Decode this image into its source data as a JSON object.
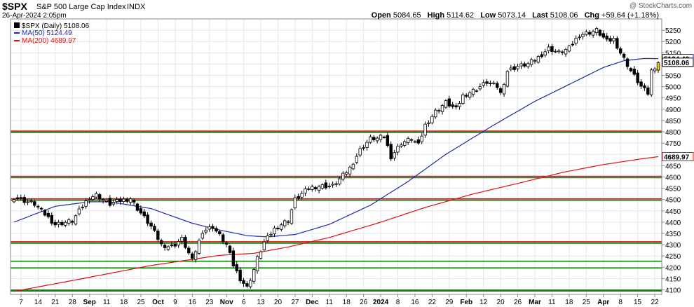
{
  "header": {
    "symbol": "$SPX",
    "name": "S&P 500 Large Cap Index",
    "exchange": "INDX",
    "date": "26-Apr-2024 2:05pm",
    "brand": "@ StockCharts.com",
    "open_label": "Open",
    "open": "5084.65",
    "high_label": "High",
    "high": "5114.62",
    "low_label": "Low",
    "low": "5073.14",
    "last_label": "Last",
    "last": "5108.06",
    "chg_label": "Chg",
    "chg": "+59.64 (+1.18%)"
  },
  "legend": {
    "main": "$SPX (Daily) 5108.06",
    "ma50": "MA(50) 5124.49",
    "ma200": "MA(200) 4689.97"
  },
  "colors": {
    "candle": "#000000",
    "last_candle": "#f2d000",
    "ma50": "#1a2ca8",
    "ma200": "#e01010",
    "resistance": "#e01010",
    "support": "#0a8a0a",
    "grid": "#e6e6e6"
  },
  "chart_data": {
    "type": "candlestick",
    "title": "$SPX (Daily)",
    "ylim": [
      4080,
      5300
    ],
    "y_ticks": [
      4100,
      4150,
      4200,
      4250,
      4300,
      4350,
      4400,
      4450,
      4500,
      4550,
      4600,
      4650,
      4700,
      4750,
      4800,
      4850,
      4900,
      4950,
      5000,
      5050,
      5100,
      5150,
      5200,
      5250
    ],
    "x_labels": [
      "7",
      "14",
      "21",
      "28",
      "Sep",
      "11",
      "18",
      "25",
      "Oct",
      "9",
      "16",
      "23",
      "Nov",
      "6",
      "13",
      "20",
      "27",
      "Dec",
      "11",
      "18",
      "26",
      "2024",
      "8",
      "16",
      "22",
      "29",
      "Feb",
      "12",
      "20",
      "26",
      "Mar",
      "11",
      "18",
      "25",
      "Apr",
      "8",
      "15",
      "22"
    ],
    "last_value_label": "5108.06",
    "ma50_value_label": "5124.49",
    "ma200_value_label": "4689.97",
    "horizontal_lines": [
      {
        "level": 4800,
        "color": "red"
      },
      {
        "level": 4800,
        "color": "green"
      },
      {
        "level": 4600,
        "color": "red"
      },
      {
        "level": 4600,
        "color": "green"
      },
      {
        "level": 4500,
        "color": "red"
      },
      {
        "level": 4500,
        "color": "green"
      },
      {
        "level": 4310,
        "color": "red"
      },
      {
        "level": 4310,
        "color": "green"
      },
      {
        "level": 4230,
        "color": "green"
      },
      {
        "level": 4200,
        "color": "green"
      },
      {
        "level": 4100,
        "color": "green"
      }
    ],
    "close_anchors": [
      [
        0,
        4510
      ],
      [
        6,
        4480
      ],
      [
        12,
        4390
      ],
      [
        17,
        4405
      ],
      [
        20,
        4470
      ],
      [
        22,
        4510
      ],
      [
        24,
        4520
      ],
      [
        28,
        4480
      ],
      [
        31,
        4495
      ],
      [
        34,
        4505
      ],
      [
        36,
        4460
      ],
      [
        40,
        4380
      ],
      [
        43,
        4300
      ],
      [
        46,
        4290
      ],
      [
        49,
        4325
      ],
      [
        52,
        4230
      ],
      [
        55,
        4360
      ],
      [
        58,
        4380
      ],
      [
        62,
        4300
      ],
      [
        64,
        4210
      ],
      [
        66,
        4150
      ],
      [
        68,
        4110
      ],
      [
        70,
        4190
      ],
      [
        71,
        4240
      ],
      [
        73,
        4310
      ],
      [
        76,
        4370
      ],
      [
        80,
        4410
      ],
      [
        82,
        4500
      ],
      [
        86,
        4550
      ],
      [
        89,
        4560
      ],
      [
        93,
        4560
      ],
      [
        95,
        4590
      ],
      [
        98,
        4640
      ],
      [
        101,
        4720
      ],
      [
        104,
        4770
      ],
      [
        106,
        4770
      ],
      [
        108,
        4780
      ],
      [
        110,
        4690
      ],
      [
        113,
        4750
      ],
      [
        116,
        4770
      ],
      [
        118,
        4740
      ],
      [
        120,
        4830
      ],
      [
        123,
        4890
      ],
      [
        126,
        4930
      ],
      [
        129,
        4900
      ],
      [
        131,
        4960
      ],
      [
        135,
        4990
      ],
      [
        138,
        5020
      ],
      [
        141,
        5000
      ],
      [
        142,
        4970
      ],
      [
        144,
        5070
      ],
      [
        147,
        5090
      ],
      [
        150,
        5100
      ],
      [
        153,
        5130
      ],
      [
        156,
        5170
      ],
      [
        159,
        5150
      ],
      [
        162,
        5170
      ],
      [
        165,
        5230
      ],
      [
        168,
        5240
      ],
      [
        170,
        5250
      ],
      [
        173,
        5200
      ],
      [
        175,
        5210
      ],
      [
        177,
        5150
      ],
      [
        180,
        5070
      ],
      [
        183,
        5000
      ],
      [
        185,
        4970
      ],
      [
        186,
        5070
      ],
      [
        188,
        5108
      ]
    ],
    "ma50_anchors": [
      [
        0,
        4400
      ],
      [
        12,
        4470
      ],
      [
        22,
        4490
      ],
      [
        28,
        4490
      ],
      [
        40,
        4460
      ],
      [
        52,
        4395
      ],
      [
        60,
        4365
      ],
      [
        68,
        4340
      ],
      [
        74,
        4335
      ],
      [
        82,
        4345
      ],
      [
        92,
        4390
      ],
      [
        104,
        4475
      ],
      [
        115,
        4580
      ],
      [
        126,
        4700
      ],
      [
        140,
        4830
      ],
      [
        152,
        4935
      ],
      [
        164,
        5025
      ],
      [
        172,
        5085
      ],
      [
        178,
        5115
      ],
      [
        184,
        5125
      ],
      [
        188,
        5124
      ]
    ],
    "ma200_anchors": [
      [
        0,
        4093
      ],
      [
        20,
        4150
      ],
      [
        40,
        4208
      ],
      [
        60,
        4253
      ],
      [
        70,
        4262
      ],
      [
        80,
        4290
      ],
      [
        92,
        4332
      ],
      [
        106,
        4395
      ],
      [
        120,
        4465
      ],
      [
        134,
        4525
      ],
      [
        148,
        4575
      ],
      [
        160,
        4620
      ],
      [
        172,
        4655
      ],
      [
        182,
        4678
      ],
      [
        188,
        4690
      ]
    ]
  }
}
